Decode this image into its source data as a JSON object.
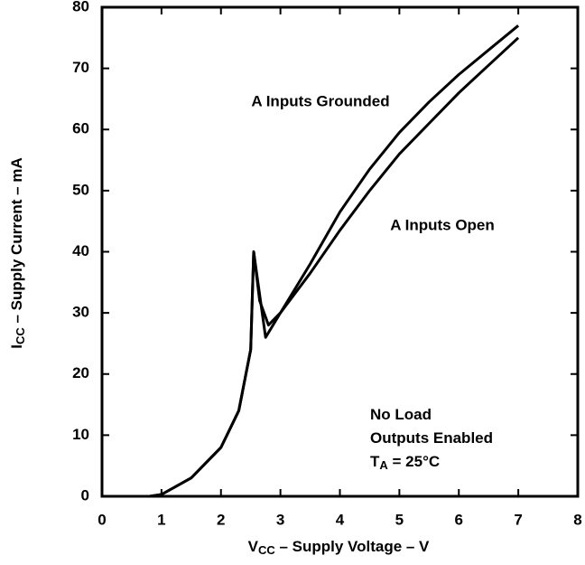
{
  "chart_data": {
    "type": "line",
    "x_label": [
      "V",
      "CC",
      " – Supply Voltage – V"
    ],
    "y_label": [
      "I",
      "CC",
      " – Supply Current – mA"
    ],
    "xlim": [
      0,
      8
    ],
    "xticks": [
      0,
      1,
      2,
      3,
      4,
      5,
      6,
      7,
      8
    ],
    "ylim": [
      0,
      80
    ],
    "yticks": [
      0,
      10,
      20,
      30,
      40,
      50,
      60,
      70,
      80
    ],
    "grid": false,
    "series": [
      {
        "name": "A Inputs Grounded",
        "color": "#000000",
        "x": [
          0.8,
          1.0,
          1.5,
          2.0,
          2.3,
          2.5,
          2.55,
          2.75,
          3.0,
          3.5,
          4.0,
          4.5,
          5.0,
          5.5,
          6.0,
          6.5,
          7.0
        ],
        "values": [
          0,
          0.3,
          3,
          8,
          14,
          24,
          40,
          26,
          30,
          38,
          46.5,
          53.5,
          59.5,
          64.5,
          69,
          73,
          77
        ]
      },
      {
        "name": "A Inputs Open",
        "color": "#000000",
        "x": [
          0.8,
          1.0,
          1.5,
          2.0,
          2.3,
          2.5,
          2.55,
          2.65,
          2.8,
          3.0,
          3.5,
          4.0,
          4.5,
          5.0,
          5.5,
          6.0,
          6.5,
          7.0
        ],
        "values": [
          0,
          0.3,
          3,
          8,
          14,
          24,
          40,
          32,
          28,
          30,
          36.5,
          43.5,
          50,
          56,
          61,
          66,
          70.5,
          75
        ]
      }
    ],
    "annotations": [
      {
        "text": "No Load"
      },
      {
        "text": "Outputs Enabled"
      },
      {
        "text": "T",
        "sub": "A",
        "rest": " = 25°C"
      }
    ]
  }
}
